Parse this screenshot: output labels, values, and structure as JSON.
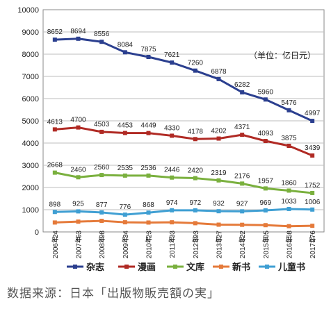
{
  "chart_data": {
    "type": "line",
    "unit_label": "（单位：亿日元）",
    "categories": [
      "2006年",
      "2007年",
      "2008年",
      "2009年",
      "2010年",
      "2011年",
      "2012年",
      "2013年",
      "2014年",
      "2015年",
      "2016年",
      "2017年"
    ],
    "ylim": [
      0,
      10000
    ],
    "yticks": [
      0,
      1000,
      2000,
      3000,
      4000,
      5000,
      6000,
      7000,
      8000,
      9000,
      10000
    ],
    "grid": true,
    "legend_position": "bottom",
    "series": [
      {
        "name": "杂志",
        "color": "#2b3f8f",
        "values": [
          8652,
          8694,
          8556,
          8084,
          7875,
          7621,
          7260,
          6878,
          6282,
          5960,
          5476,
          4997
        ]
      },
      {
        "name": "漫画",
        "color": "#b02a24",
        "values": [
          4613,
          4700,
          4503,
          4453,
          4449,
          4330,
          4178,
          4202,
          4371,
          4093,
          3875,
          3439
        ]
      },
      {
        "name": "文库",
        "color": "#7ab03e",
        "values": [
          2668,
          2460,
          2560,
          2535,
          2536,
          2446,
          2420,
          2319,
          2176,
          1957,
          1860,
          1752
        ]
      },
      {
        "name": "新书",
        "color": "#e57a3a",
        "values": [
          424,
          463,
          498,
          434,
          423,
          433,
          393,
          327,
          322,
          305,
          258,
          276
        ]
      },
      {
        "name": "儿童书",
        "color": "#3f9fd3",
        "values": [
          898,
          925,
          877,
          776,
          868,
          974,
          972,
          932,
          927,
          969,
          1033,
          1006
        ]
      }
    ]
  },
  "caption": "数据来源：日本「出版物販売額の実」"
}
